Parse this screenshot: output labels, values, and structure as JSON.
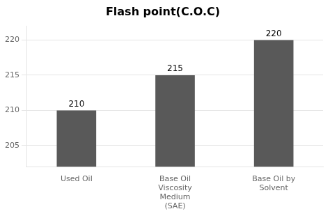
{
  "chart_data": {
    "type": "bar",
    "title": "Flash point(C.O.C)",
    "categories": [
      "Used Oil",
      "Base Oil\nViscosity\nMedium\n(SAE)",
      "Base Oil by\nSolvent"
    ],
    "values": [
      210,
      215,
      220
    ],
    "color": "#595959",
    "ylim": [
      202,
      222
    ],
    "yticks": [
      205,
      210,
      215,
      220
    ],
    "grid": true,
    "data_labels": true
  }
}
